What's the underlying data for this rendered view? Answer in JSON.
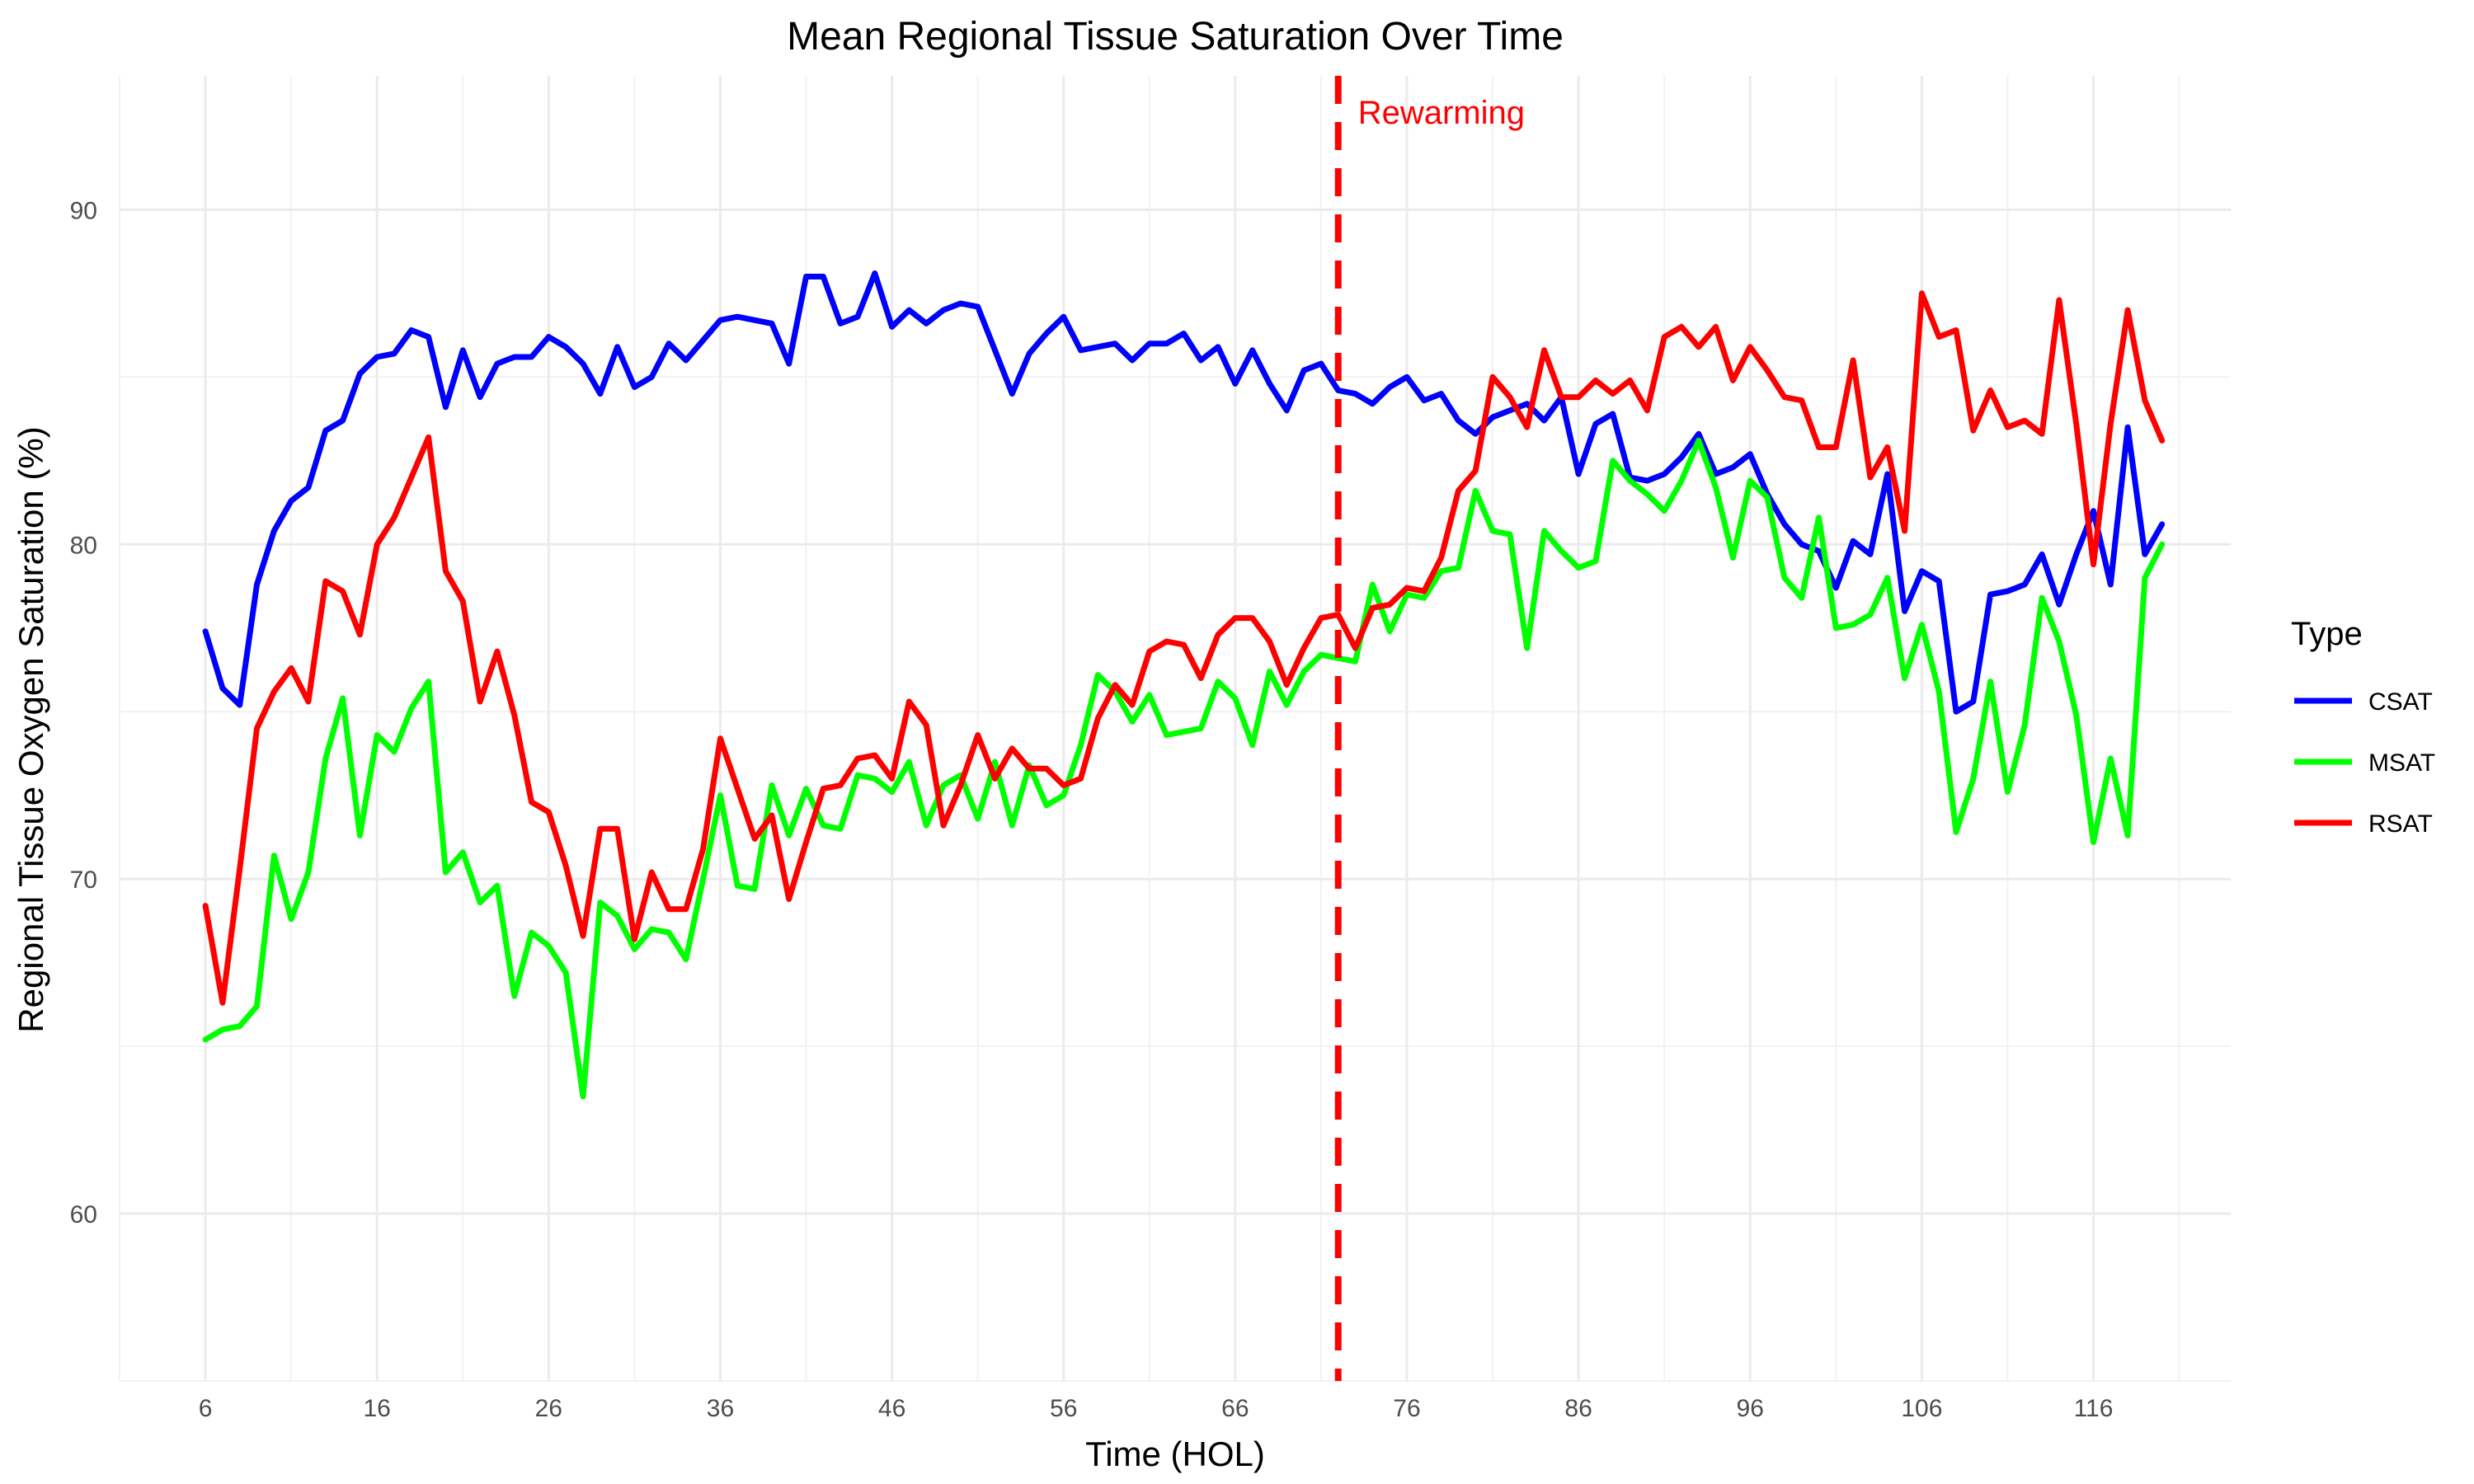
{
  "chart_data": {
    "type": "line",
    "title": "Mean Regional Tissue Saturation Over Time",
    "xlabel": "Time (HOL)",
    "ylabel": "Regional Tissue Oxygen Saturation (%)",
    "xlim": [
      1,
      124
    ],
    "ylim": [
      55,
      94
    ],
    "x_ticks": [
      6,
      16,
      26,
      36,
      46,
      56,
      66,
      76,
      86,
      96,
      106,
      116
    ],
    "y_ticks": [
      60,
      70,
      80,
      90
    ],
    "grid": true,
    "legend": {
      "title": "Type",
      "position": "right"
    },
    "x": [
      6,
      7,
      8,
      9,
      10,
      11,
      12,
      13,
      14,
      15,
      16,
      17,
      18,
      19,
      20,
      21,
      22,
      23,
      24,
      25,
      26,
      27,
      28,
      29,
      30,
      31,
      32,
      33,
      34,
      35,
      36,
      37,
      38,
      39,
      40,
      41,
      42,
      43,
      44,
      45,
      46,
      47,
      48,
      49,
      50,
      51,
      52,
      53,
      54,
      55,
      56,
      57,
      58,
      59,
      60,
      61,
      62,
      63,
      64,
      65,
      66,
      67,
      68,
      69,
      70,
      71,
      72,
      73,
      74,
      75,
      76,
      77,
      78,
      79,
      80,
      81,
      82,
      83,
      84,
      85,
      86,
      87,
      88,
      89,
      90,
      91,
      92,
      93,
      94,
      95,
      96,
      97,
      98,
      99,
      100,
      101,
      102,
      103,
      104,
      105,
      106,
      107,
      108,
      109,
      110,
      111,
      112,
      113,
      114,
      115,
      116,
      117,
      118,
      119,
      120
    ],
    "series": [
      {
        "name": "CSAT",
        "color": "#0000ff",
        "values": [
          77.4,
          75.7,
          75.2,
          78.8,
          80.4,
          81.3,
          81.7,
          83.4,
          83.7,
          85.1,
          85.6,
          85.7,
          86.4,
          86.2,
          84.1,
          85.8,
          84.4,
          85.4,
          85.6,
          85.6,
          86.2,
          85.9,
          85.4,
          84.5,
          85.9,
          84.7,
          85.0,
          86.0,
          85.5,
          86.1,
          86.7,
          86.8,
          86.7,
          86.6,
          85.4,
          88.0,
          88.0,
          86.6,
          86.8,
          88.1,
          86.5,
          87.0,
          86.6,
          87.0,
          87.2,
          87.1,
          85.8,
          84.5,
          85.7,
          86.3,
          86.8,
          85.8,
          85.9,
          86.0,
          85.5,
          86.0,
          86.0,
          86.3,
          85.5,
          85.9,
          84.8,
          85.8,
          84.8,
          84.0,
          85.2,
          85.4,
          84.6,
          84.5,
          84.2,
          84.7,
          85.0,
          84.3,
          84.5,
          83.7,
          83.3,
          83.8,
          84.0,
          84.2,
          83.7,
          84.4,
          82.1,
          83.6,
          83.9,
          82.0,
          81.9,
          82.1,
          82.6,
          83.3,
          82.1,
          82.3,
          82.7,
          81.5,
          80.6,
          80.0,
          79.8,
          78.7,
          80.1,
          79.7,
          82.1,
          78.0,
          79.2,
          78.9,
          75.0,
          75.3,
          78.5,
          78.6,
          78.8,
          79.7,
          78.2,
          79.7,
          81.0,
          78.8,
          83.5,
          79.7,
          80.6
        ]
      },
      {
        "name": "MSAT",
        "color": "#00ff00",
        "values": [
          65.2,
          65.5,
          65.6,
          66.2,
          70.7,
          68.8,
          70.2,
          73.6,
          75.4,
          71.3,
          74.3,
          73.8,
          75.1,
          75.9,
          70.2,
          70.8,
          69.3,
          69.8,
          66.5,
          68.4,
          68.0,
          67.2,
          63.5,
          69.3,
          68.9,
          67.9,
          68.5,
          68.4,
          67.6,
          70.0,
          72.5,
          69.8,
          69.7,
          72.8,
          71.3,
          72.7,
          71.6,
          71.5,
          73.1,
          73.0,
          72.6,
          73.5,
          71.6,
          72.8,
          73.1,
          71.8,
          73.5,
          71.6,
          73.4,
          72.2,
          72.5,
          74.0,
          76.1,
          75.6,
          74.7,
          75.5,
          74.3,
          74.4,
          74.5,
          75.9,
          75.4,
          74.0,
          76.2,
          75.2,
          76.2,
          76.7,
          76.6,
          76.5,
          78.8,
          77.4,
          78.5,
          78.4,
          79.2,
          79.3,
          81.6,
          80.4,
          80.3,
          76.9,
          80.4,
          79.8,
          79.3,
          79.5,
          82.5,
          81.9,
          81.5,
          81.0,
          81.9,
          83.1,
          81.7,
          79.6,
          81.9,
          81.4,
          79.0,
          78.4,
          80.8,
          77.5,
          77.6,
          77.9,
          79.0,
          76.0,
          77.6,
          75.6,
          71.4,
          73.0,
          75.9,
          72.6,
          74.6,
          78.4,
          77.1,
          74.9,
          71.1,
          73.6,
          71.3,
          79.0,
          80.0
        ]
      },
      {
        "name": "RSAT",
        "color": "#ff0000",
        "values": [
          69.2,
          66.3,
          70.3,
          74.5,
          75.6,
          76.3,
          75.3,
          78.9,
          78.6,
          77.3,
          80.0,
          80.8,
          82.0,
          83.2,
          79.2,
          78.3,
          75.3,
          76.8,
          74.9,
          72.3,
          72.0,
          70.4,
          68.3,
          71.5,
          71.5,
          68.2,
          70.2,
          69.1,
          69.1,
          70.9,
          74.2,
          72.7,
          71.2,
          71.9,
          69.4,
          71.1,
          72.7,
          72.8,
          73.6,
          73.7,
          73.0,
          75.3,
          74.6,
          71.6,
          72.8,
          74.3,
          73.0,
          73.9,
          73.3,
          73.3,
          72.8,
          73.0,
          74.8,
          75.8,
          75.2,
          76.8,
          77.1,
          77.0,
          76.0,
          77.3,
          77.8,
          77.8,
          77.1,
          75.8,
          76.9,
          77.8,
          77.9,
          76.9,
          78.1,
          78.2,
          78.7,
          78.6,
          79.6,
          81.6,
          82.2,
          85.0,
          84.4,
          83.5,
          85.8,
          84.4,
          84.4,
          84.9,
          84.5,
          84.9,
          84.0,
          86.2,
          86.5,
          85.9,
          86.5,
          84.9,
          85.9,
          85.2,
          84.4,
          84.3,
          82.9,
          82.9,
          85.5,
          82.0,
          82.9,
          80.4,
          87.5,
          86.2,
          86.4,
          83.4,
          84.6,
          83.5,
          83.7,
          83.3,
          87.3,
          83.6,
          79.4,
          83.6,
          87.0,
          84.3,
          83.1
        ]
      }
    ],
    "annotations": [
      {
        "type": "vline",
        "x": 72,
        "style": "dashed",
        "color": "#ff0000",
        "label": "Rewarming"
      }
    ]
  }
}
